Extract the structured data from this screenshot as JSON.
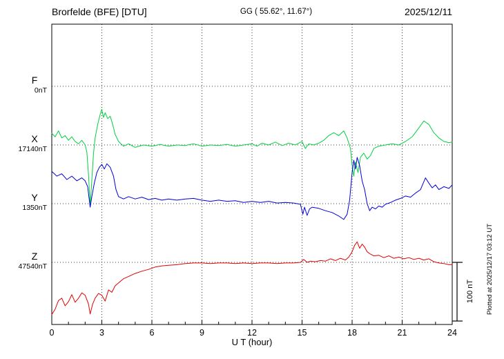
{
  "header": {
    "station": "Brorfelde (BFE)  [DTU]",
    "coords": "GG ( 55.62°,  11.67°)",
    "date": "2025/12/11",
    "plotted_note": "Plotted at 2025/12/17 03:12 UT"
  },
  "chart_data": {
    "type": "line",
    "title": "Brorfelde (BFE) [DTU] magnetogram 2025/12/11",
    "xlabel": "U T (hour)",
    "x_range": [
      0,
      24
    ],
    "x_ticks": [
      0,
      3,
      6,
      9,
      12,
      15,
      18,
      21,
      24
    ],
    "grid": "dotted",
    "scale_bar": {
      "label": "100 nT",
      "nT": 100
    },
    "series": [
      {
        "name": "F",
        "baseline_label": "0nT",
        "color": "#ffa800",
        "points": []
      },
      {
        "name": "X",
        "baseline_label": "17140nT",
        "color": "#00d040",
        "points": [
          [
            0,
            20
          ],
          [
            0.2,
            14
          ],
          [
            0.4,
            24
          ],
          [
            0.6,
            12
          ],
          [
            0.8,
            16
          ],
          [
            1,
            8
          ],
          [
            1.2,
            14
          ],
          [
            1.4,
            6
          ],
          [
            1.6,
            2
          ],
          [
            1.8,
            8
          ],
          [
            2,
            0
          ],
          [
            2.1,
            -12
          ],
          [
            2.2,
            -50
          ],
          [
            2.3,
            -104
          ],
          [
            2.4,
            -60
          ],
          [
            2.5,
            -15
          ],
          [
            2.6,
            12
          ],
          [
            2.75,
            35
          ],
          [
            2.9,
            52
          ],
          [
            3,
            61
          ],
          [
            3.1,
            47
          ],
          [
            3.2,
            55
          ],
          [
            3.35,
            45
          ],
          [
            3.5,
            49
          ],
          [
            3.65,
            35
          ],
          [
            3.8,
            18
          ],
          [
            4,
            6
          ],
          [
            4.3,
            -2
          ],
          [
            4.6,
            2
          ],
          [
            5,
            -4
          ],
          [
            5.5,
            0
          ],
          [
            6,
            -2
          ],
          [
            6.5,
            1
          ],
          [
            7,
            -2
          ],
          [
            7.5,
            0
          ],
          [
            8,
            -1
          ],
          [
            8.5,
            2
          ],
          [
            9,
            -2
          ],
          [
            9.5,
            0
          ],
          [
            10,
            -1
          ],
          [
            10.5,
            1
          ],
          [
            11,
            -2
          ],
          [
            11.5,
            0
          ],
          [
            12,
            2
          ],
          [
            12.3,
            -2
          ],
          [
            12.6,
            3
          ],
          [
            13,
            0
          ],
          [
            13.4,
            5
          ],
          [
            13.8,
            -1
          ],
          [
            14.2,
            3
          ],
          [
            14.6,
            0
          ],
          [
            15,
            6
          ],
          [
            15.2,
            -6
          ],
          [
            15.4,
            2
          ],
          [
            15.7,
            0
          ],
          [
            16,
            3
          ],
          [
            16.3,
            8
          ],
          [
            16.6,
            16
          ],
          [
            16.9,
            21
          ],
          [
            17.2,
            16
          ],
          [
            17.5,
            24
          ],
          [
            17.7,
            12
          ],
          [
            17.9,
            -6
          ],
          [
            18,
            -35
          ],
          [
            18.1,
            -53
          ],
          [
            18.2,
            -29
          ],
          [
            18.35,
            -47
          ],
          [
            18.5,
            -21
          ],
          [
            18.7,
            -14
          ],
          [
            18.9,
            -24
          ],
          [
            19.1,
            -18
          ],
          [
            19.3,
            -6
          ],
          [
            19.6,
            -2
          ],
          [
            20,
            0
          ],
          [
            20.4,
            2
          ],
          [
            20.8,
            0
          ],
          [
            21.2,
            6
          ],
          [
            21.6,
            14
          ],
          [
            22,
            29
          ],
          [
            22.3,
            41
          ],
          [
            22.6,
            35
          ],
          [
            22.9,
            21
          ],
          [
            23.2,
            12
          ],
          [
            23.5,
            6
          ],
          [
            23.8,
            4
          ],
          [
            24,
            5
          ]
        ]
      },
      {
        "name": "Y",
        "baseline_label": "1350nT",
        "color": "#0000d8",
        "points": [
          [
            0,
            55
          ],
          [
            0.3,
            47
          ],
          [
            0.6,
            51
          ],
          [
            0.9,
            41
          ],
          [
            1.2,
            47
          ],
          [
            1.5,
            39
          ],
          [
            1.8,
            44
          ],
          [
            2,
            39
          ],
          [
            2.15,
            29
          ],
          [
            2.3,
            -6
          ],
          [
            2.4,
            12
          ],
          [
            2.55,
            35
          ],
          [
            2.7,
            53
          ],
          [
            2.85,
            62
          ],
          [
            3,
            67
          ],
          [
            3.15,
            59
          ],
          [
            3.3,
            68
          ],
          [
            3.5,
            62
          ],
          [
            3.7,
            47
          ],
          [
            3.85,
            24
          ],
          [
            4,
            12
          ],
          [
            4.3,
            8
          ],
          [
            4.6,
            12
          ],
          [
            5,
            8
          ],
          [
            5.4,
            11
          ],
          [
            5.8,
            7
          ],
          [
            6.2,
            9
          ],
          [
            6.6,
            6
          ],
          [
            7,
            8
          ],
          [
            7.5,
            6
          ],
          [
            8,
            8
          ],
          [
            8.5,
            9
          ],
          [
            9,
            6
          ],
          [
            9.5,
            4
          ],
          [
            10,
            6
          ],
          [
            10.5,
            4
          ],
          [
            11,
            5
          ],
          [
            11.5,
            2
          ],
          [
            12,
            4
          ],
          [
            12.5,
            2
          ],
          [
            13,
            4
          ],
          [
            13.5,
            1
          ],
          [
            14,
            2
          ],
          [
            14.5,
            1
          ],
          [
            14.9,
            -1
          ],
          [
            15.05,
            -18
          ],
          [
            15.15,
            -6
          ],
          [
            15.3,
            -20
          ],
          [
            15.45,
            -9
          ],
          [
            15.6,
            -6
          ],
          [
            16,
            -8
          ],
          [
            16.4,
            -12
          ],
          [
            16.8,
            -15
          ],
          [
            17.2,
            -21
          ],
          [
            17.5,
            -27
          ],
          [
            17.7,
            -18
          ],
          [
            17.85,
            6
          ],
          [
            18,
            53
          ],
          [
            18.1,
            74
          ],
          [
            18.2,
            59
          ],
          [
            18.3,
            79
          ],
          [
            18.45,
            65
          ],
          [
            18.6,
            39
          ],
          [
            18.75,
            24
          ],
          [
            18.9,
            0
          ],
          [
            19.05,
            -12
          ],
          [
            19.2,
            -6
          ],
          [
            19.4,
            -9
          ],
          [
            19.6,
            -4
          ],
          [
            19.8,
            -6
          ],
          [
            20,
            -1
          ],
          [
            20.3,
            2
          ],
          [
            20.6,
            6
          ],
          [
            20.9,
            9
          ],
          [
            21.2,
            13
          ],
          [
            21.5,
            11
          ],
          [
            21.8,
            18
          ],
          [
            22.1,
            24
          ],
          [
            22.4,
            44
          ],
          [
            22.6,
            35
          ],
          [
            22.8,
            27
          ],
          [
            23,
            32
          ],
          [
            23.2,
            24
          ],
          [
            23.5,
            29
          ],
          [
            23.8,
            26
          ],
          [
            24,
            32
          ]
        ]
      },
      {
        "name": "Z",
        "baseline_label": "47540nT",
        "color": "#e00000",
        "points": [
          [
            0,
            -89
          ],
          [
            0.2,
            -80
          ],
          [
            0.4,
            -65
          ],
          [
            0.6,
            -61
          ],
          [
            0.8,
            -74
          ],
          [
            1,
            -67
          ],
          [
            1.2,
            -55
          ],
          [
            1.4,
            -68
          ],
          [
            1.6,
            -61
          ],
          [
            1.8,
            -52
          ],
          [
            2,
            -56
          ],
          [
            2.2,
            -71
          ],
          [
            2.3,
            -88
          ],
          [
            2.45,
            -71
          ],
          [
            2.6,
            -61
          ],
          [
            2.8,
            -53
          ],
          [
            3,
            -56
          ],
          [
            3.2,
            -66
          ],
          [
            3.4,
            -47
          ],
          [
            3.6,
            -51
          ],
          [
            3.8,
            -40
          ],
          [
            4,
            -35
          ],
          [
            4.3,
            -28
          ],
          [
            4.6,
            -24
          ],
          [
            5,
            -19
          ],
          [
            5.4,
            -15
          ],
          [
            5.8,
            -12
          ],
          [
            6.2,
            -8
          ],
          [
            6.6,
            -6
          ],
          [
            7,
            -5
          ],
          [
            7.5,
            -4
          ],
          [
            8,
            -2
          ],
          [
            8.5,
            -1
          ],
          [
            9,
            -1
          ],
          [
            9.5,
            -2
          ],
          [
            10,
            -1
          ],
          [
            10.5,
            -1
          ],
          [
            11,
            -2
          ],
          [
            11.5,
            -1
          ],
          [
            12,
            -2
          ],
          [
            12.5,
            -1
          ],
          [
            13,
            -1
          ],
          [
            13.5,
            -2
          ],
          [
            14,
            -1
          ],
          [
            14.5,
            -1
          ],
          [
            14.9,
            0
          ],
          [
            15.1,
            5
          ],
          [
            15.3,
            0
          ],
          [
            15.5,
            2
          ],
          [
            15.8,
            1
          ],
          [
            16.1,
            3
          ],
          [
            16.4,
            2
          ],
          [
            16.7,
            6
          ],
          [
            17,
            3
          ],
          [
            17.3,
            7
          ],
          [
            17.6,
            4
          ],
          [
            17.8,
            9
          ],
          [
            18,
            18
          ],
          [
            18.15,
            29
          ],
          [
            18.3,
            35
          ],
          [
            18.45,
            24
          ],
          [
            18.6,
            31
          ],
          [
            18.75,
            26
          ],
          [
            18.9,
            18
          ],
          [
            19.1,
            14
          ],
          [
            19.3,
            11
          ],
          [
            19.6,
            12
          ],
          [
            19.9,
            8
          ],
          [
            20.2,
            11
          ],
          [
            20.5,
            7
          ],
          [
            20.8,
            9
          ],
          [
            21.1,
            6
          ],
          [
            21.4,
            8
          ],
          [
            21.7,
            5
          ],
          [
            22,
            7
          ],
          [
            22.3,
            4
          ],
          [
            22.6,
            6
          ],
          [
            22.9,
            1
          ],
          [
            23.2,
            -1
          ],
          [
            23.5,
            -2
          ],
          [
            23.8,
            -4
          ],
          [
            24,
            -4
          ]
        ]
      }
    ]
  }
}
